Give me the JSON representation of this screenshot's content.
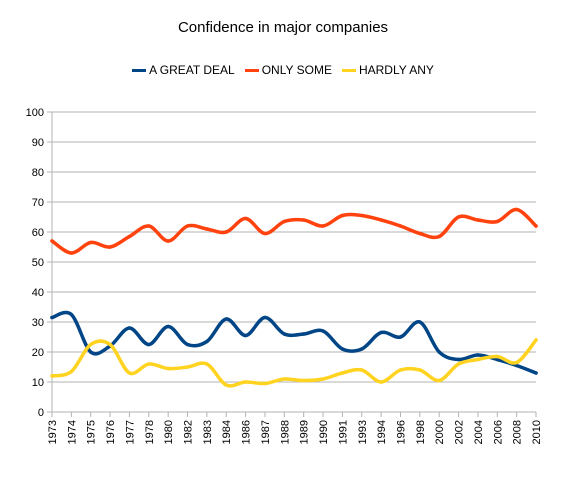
{
  "chart_data": {
    "type": "line",
    "title": "Confidence in major companies",
    "xlabel": "",
    "ylabel": "",
    "ylim": [
      0,
      100
    ],
    "yticks": [
      0,
      10,
      20,
      30,
      40,
      50,
      60,
      70,
      80,
      90,
      100
    ],
    "grid": true,
    "legend_position": "top",
    "categories": [
      "1973",
      "1974",
      "1975",
      "1976",
      "1977",
      "1978",
      "1980",
      "1982",
      "1983",
      "1984",
      "1986",
      "1987",
      "1988",
      "1989",
      "1990",
      "1991",
      "1993",
      "1994",
      "1996",
      "1998",
      "2000",
      "2002",
      "2004",
      "2006",
      "2008",
      "2010"
    ],
    "series": [
      {
        "name": "A GREAT DEAL",
        "color": "#004586",
        "values": [
          31.5,
          32.5,
          20,
          22,
          28,
          22.5,
          28.5,
          22.5,
          23.5,
          31,
          25.5,
          31.5,
          26,
          26,
          27,
          21,
          21,
          26.5,
          25,
          30,
          20,
          17.5,
          19,
          17.5,
          15.5,
          13
        ]
      },
      {
        "name": "ONLY SOME",
        "color": "#ff420e",
        "values": [
          57,
          53,
          56.5,
          55,
          58.5,
          62,
          57,
          62,
          61,
          60,
          64.5,
          59.5,
          63.5,
          64,
          62,
          65.5,
          65.5,
          64,
          62,
          59.5,
          58.5,
          65,
          64,
          63.5,
          67.5,
          62
        ]
      },
      {
        "name": "HARDLY ANY",
        "color": "#ffd320",
        "values": [
          12,
          13.5,
          22.5,
          22.5,
          13,
          16,
          14.5,
          15,
          16,
          9,
          10,
          9.5,
          11,
          10.5,
          11,
          13,
          14,
          10,
          14,
          14,
          10.5,
          16,
          17.5,
          18.5,
          16.5,
          24
        ]
      }
    ]
  }
}
